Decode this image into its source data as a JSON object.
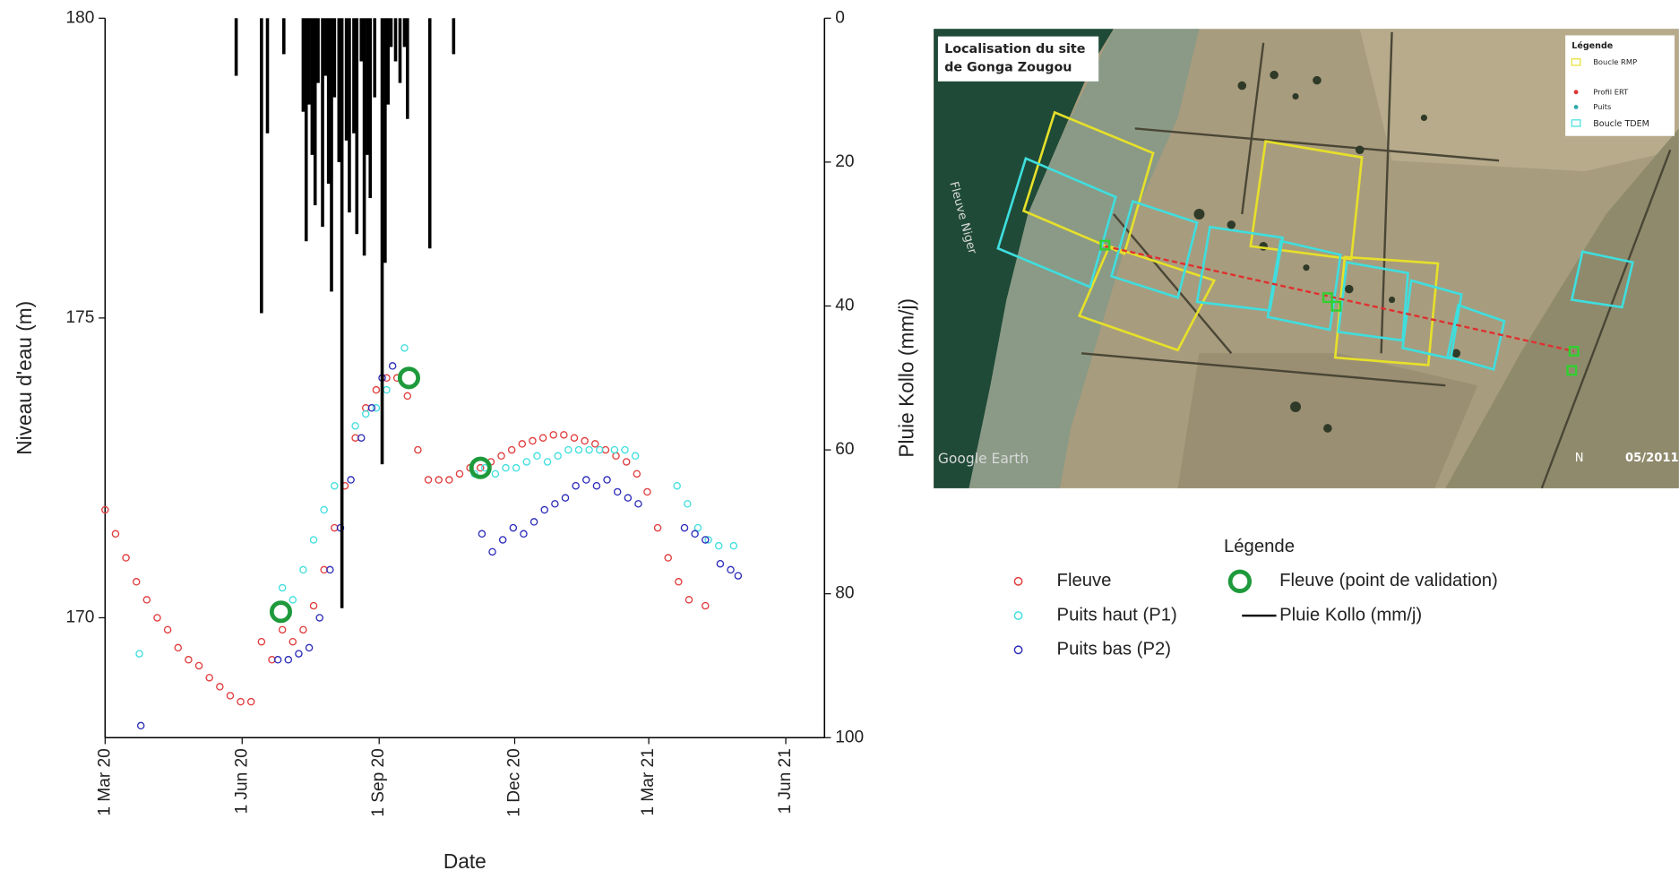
{
  "chart_data": {
    "type": "scatter",
    "xlabel": "Date",
    "ylabel": "Niveau d'eau (m)",
    "y2label": "Pluie Kollo (mm/j)",
    "legend_title": "Légende",
    "xlim": [
      "2020-03-01",
      "2021-06-27"
    ],
    "xticks": [
      {
        "value": "2020-03-01",
        "label": "1 Mar 20"
      },
      {
        "value": "2020-06-01",
        "label": "1 Jun 20"
      },
      {
        "value": "2020-09-01",
        "label": "1 Sep 20"
      },
      {
        "value": "2020-12-01",
        "label": "1 Dec 20"
      },
      {
        "value": "2021-03-01",
        "label": "1 Mar 21"
      },
      {
        "value": "2021-06-01",
        "label": "1 Jun 21"
      }
    ],
    "ylim": [
      168,
      180
    ],
    "yticks": [
      170,
      175,
      180
    ],
    "y2lim": [
      100,
      0
    ],
    "y2ticks": [
      0,
      20,
      40,
      60,
      80,
      100
    ],
    "series": [
      {
        "name": "Fleuve",
        "color": "#e03a3a",
        "marker": "small",
        "x": [
          "2020-03-01",
          "2020-03-08",
          "2020-03-15",
          "2020-03-22",
          "2020-03-29",
          "2020-04-05",
          "2020-04-12",
          "2020-04-19",
          "2020-04-26",
          "2020-05-03",
          "2020-05-10",
          "2020-05-17",
          "2020-05-24",
          "2020-05-31",
          "2020-06-07",
          "2020-06-14",
          "2020-06-21",
          "2020-06-28",
          "2020-07-05",
          "2020-07-12",
          "2020-07-19",
          "2020-07-26",
          "2020-08-02",
          "2020-08-09",
          "2020-08-16",
          "2020-08-23",
          "2020-08-30",
          "2020-09-06",
          "2020-09-13",
          "2020-09-20",
          "2020-09-27",
          "2020-10-04",
          "2020-10-11",
          "2020-10-18",
          "2020-10-25",
          "2020-11-01",
          "2020-11-08",
          "2020-11-15",
          "2020-11-22",
          "2020-11-29",
          "2020-12-06",
          "2020-12-13",
          "2020-12-20",
          "2020-12-27",
          "2021-01-03",
          "2021-01-10",
          "2021-01-17",
          "2021-01-24",
          "2021-01-31",
          "2021-02-07",
          "2021-02-14",
          "2021-02-21",
          "2021-02-28",
          "2021-03-07",
          "2021-03-14",
          "2021-03-21",
          "2021-03-28",
          "2021-04-08"
        ],
        "values": [
          171.8,
          171.4,
          171.0,
          170.6,
          170.3,
          170.0,
          169.8,
          169.5,
          169.3,
          169.2,
          169.0,
          168.85,
          168.7,
          168.6,
          168.6,
          169.6,
          169.3,
          169.8,
          169.6,
          169.8,
          170.2,
          170.8,
          171.5,
          172.2,
          173.0,
          173.5,
          173.8,
          174.0,
          174.0,
          173.7,
          172.8,
          172.3,
          172.3,
          172.3,
          172.4,
          172.5,
          172.5,
          172.6,
          172.7,
          172.8,
          172.9,
          172.95,
          173.0,
          173.05,
          173.05,
          173.0,
          172.95,
          172.9,
          172.8,
          172.7,
          172.6,
          172.4,
          172.1,
          171.5,
          171.0,
          170.6,
          170.3,
          170.2
        ]
      },
      {
        "name": "Puits haut (P1)",
        "color": "#3fdede",
        "marker": "small",
        "x": [
          "2020-03-24",
          "2020-06-28",
          "2020-07-05",
          "2020-07-12",
          "2020-07-19",
          "2020-07-26",
          "2020-08-02",
          "2020-08-16",
          "2020-08-23",
          "2020-08-30",
          "2020-09-06",
          "2020-09-18",
          "2020-11-04",
          "2020-11-11",
          "2020-11-18",
          "2020-11-25",
          "2020-12-02",
          "2020-12-09",
          "2020-12-16",
          "2020-12-23",
          "2020-12-30",
          "2021-01-06",
          "2021-01-13",
          "2021-01-20",
          "2021-01-27",
          "2021-02-06",
          "2021-02-13",
          "2021-02-20",
          "2021-03-20",
          "2021-03-27",
          "2021-04-03",
          "2021-04-10",
          "2021-04-17",
          "2021-04-27"
        ],
        "values": [
          169.4,
          170.5,
          170.3,
          170.8,
          171.3,
          171.8,
          172.2,
          173.2,
          173.4,
          173.5,
          173.8,
          174.5,
          172.4,
          172.5,
          172.4,
          172.5,
          172.5,
          172.6,
          172.7,
          172.6,
          172.7,
          172.8,
          172.8,
          172.8,
          172.8,
          172.8,
          172.8,
          172.7,
          172.2,
          171.9,
          171.5,
          171.3,
          171.2,
          171.2
        ]
      },
      {
        "name": "Puits bas (P2)",
        "color": "#2a2ab8",
        "marker": "small",
        "x": [
          "2020-03-25",
          "2020-06-25",
          "2020-07-02",
          "2020-07-09",
          "2020-07-16",
          "2020-07-23",
          "2020-07-30",
          "2020-08-06",
          "2020-08-13",
          "2020-08-20",
          "2020-08-27",
          "2020-09-03",
          "2020-09-10",
          "2020-11-09",
          "2020-11-16",
          "2020-11-23",
          "2020-11-30",
          "2020-12-07",
          "2020-12-14",
          "2020-12-21",
          "2020-12-28",
          "2021-01-04",
          "2021-01-11",
          "2021-01-18",
          "2021-01-25",
          "2021-02-01",
          "2021-02-08",
          "2021-02-15",
          "2021-02-22",
          "2021-03-25",
          "2021-04-01",
          "2021-04-08",
          "2021-04-18",
          "2021-04-25",
          "2021-04-30"
        ],
        "values": [
          168.2,
          169.3,
          169.3,
          169.4,
          169.5,
          170.0,
          170.8,
          171.5,
          172.3,
          173.0,
          173.5,
          174.0,
          174.2,
          171.4,
          171.1,
          171.3,
          171.5,
          171.4,
          171.6,
          171.8,
          171.9,
          172.0,
          172.2,
          172.3,
          172.2,
          172.3,
          172.1,
          172.0,
          171.9,
          171.5,
          171.4,
          171.3,
          170.9,
          170.8,
          170.7
        ]
      },
      {
        "name": "Fleuve (point de validation)",
        "color": "#1e9a3c",
        "marker": "large",
        "x": [
          "2020-06-27",
          "2020-09-21",
          "2020-11-08"
        ],
        "values": [
          170.1,
          174.0,
          172.5
        ]
      },
      {
        "name": "Pluie Kollo (mm/j)",
        "color": "#000000",
        "type": "bar",
        "axis": "y2",
        "x": [
          "2020-05-28",
          "2020-06-14",
          "2020-06-18",
          "2020-06-29",
          "2020-07-12",
          "2020-07-14",
          "2020-07-16",
          "2020-07-18",
          "2020-07-20",
          "2020-07-22",
          "2020-07-25",
          "2020-07-27",
          "2020-07-29",
          "2020-07-31",
          "2020-08-02",
          "2020-08-05",
          "2020-08-07",
          "2020-08-10",
          "2020-08-12",
          "2020-08-15",
          "2020-08-17",
          "2020-08-20",
          "2020-08-22",
          "2020-08-24",
          "2020-08-26",
          "2020-08-29",
          "2020-09-03",
          "2020-09-05",
          "2020-09-07",
          "2020-09-09",
          "2020-09-12",
          "2020-09-15",
          "2020-09-18",
          "2020-09-20",
          "2020-10-05",
          "2020-10-21"
        ],
        "values": [
          8,
          41,
          16,
          5,
          13,
          31,
          12,
          19,
          26,
          9,
          29,
          8,
          23,
          38,
          11,
          20,
          82,
          17,
          27,
          16,
          30,
          6,
          33,
          19,
          25,
          11,
          62,
          34,
          12,
          4,
          6,
          9,
          4,
          14,
          32,
          5
        ]
      }
    ]
  },
  "map": {
    "title": [
      "Localisation du site",
      "de Gonga Zougou"
    ],
    "legend_title": "Légende",
    "legend": [
      "Boucle RMP",
      "Profil ERT",
      "Puits",
      "Boucle TDEM"
    ],
    "river_label": "Fleuve Niger",
    "credit": "Google Earth",
    "north": "N",
    "date": "05/2011"
  }
}
